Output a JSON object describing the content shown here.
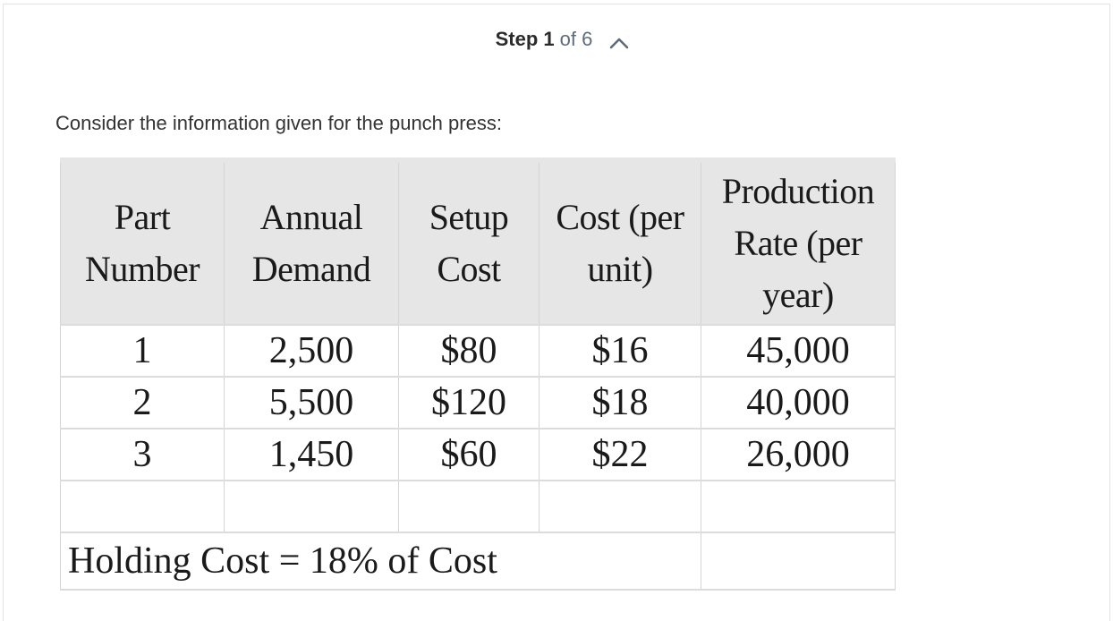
{
  "step": {
    "label": "Step 1",
    "of_text": "of 6"
  },
  "intro_text": "Consider the information given for the punch press:",
  "table": {
    "headers": [
      "Part Number",
      "Annual Demand",
      "Setup Cost",
      "Cost (per unit)",
      "Production Rate (per year)"
    ],
    "rows": [
      [
        "1",
        "2,500",
        "$80",
        "$16",
        "45,000"
      ],
      [
        "2",
        "5,500",
        "$120",
        "$18",
        "40,000"
      ],
      [
        "3",
        "1,450",
        "$60",
        "$22",
        "26,000"
      ]
    ],
    "footer_note": "Holding Cost = 18% of Cost"
  },
  "icons": {
    "collapse": "chevron-up-icon"
  }
}
